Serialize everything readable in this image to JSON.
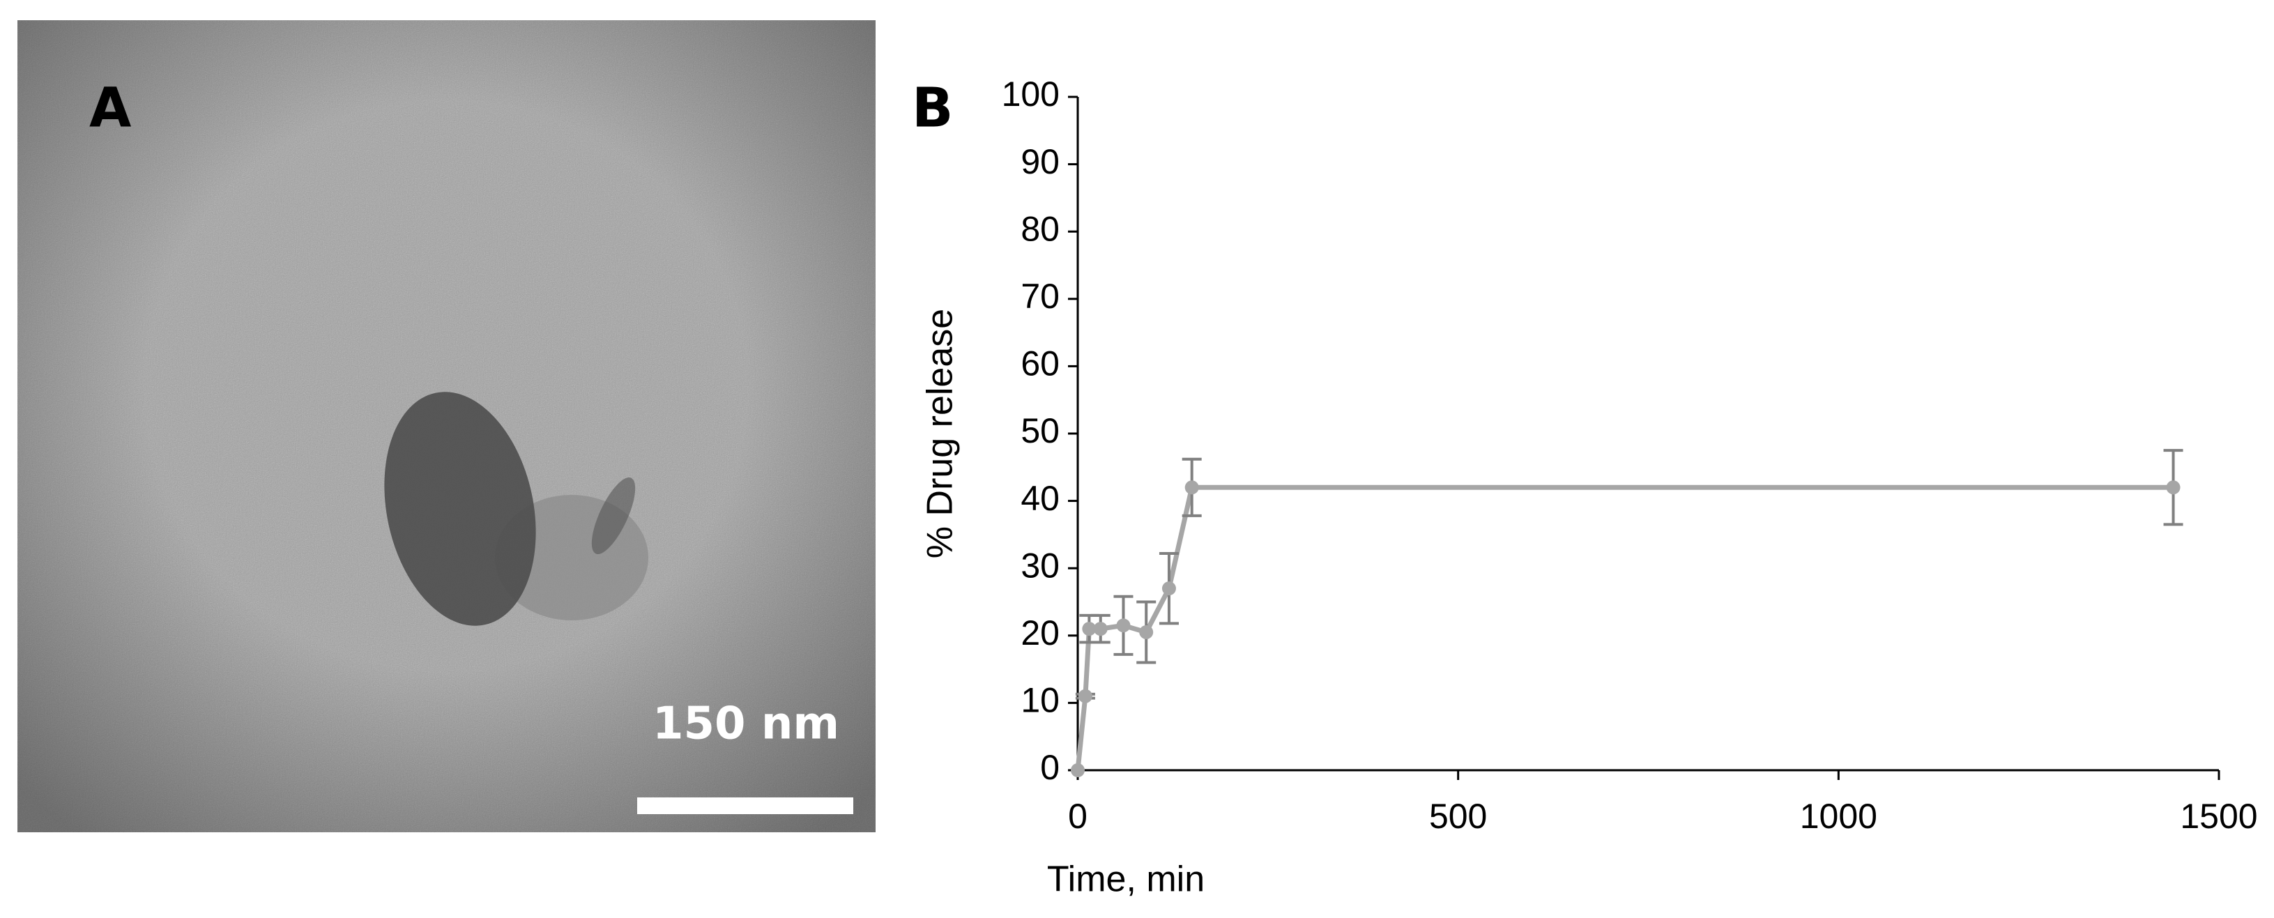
{
  "image_panel": {
    "label": "A",
    "scale_bar": "150 nm"
  },
  "chart_data": {
    "type": "line",
    "panel_label": "B",
    "x": [
      0,
      10,
      15,
      30,
      60,
      90,
      120,
      150,
      1440
    ],
    "series": [
      {
        "name": "Drug release",
        "color": "#a6a6a6",
        "values": [
          0,
          11,
          21,
          21,
          21.5,
          20.5,
          27,
          42,
          42
        ],
        "errors": [
          0,
          0.3,
          2,
          2,
          4.3,
          4.5,
          5.2,
          4.2,
          5.5
        ]
      }
    ],
    "xlabel": "Time, min",
    "ylabel": "% Drug release",
    "xlim": [
      0,
      1500
    ],
    "xticks": [
      0,
      500,
      1000,
      1500
    ],
    "ylim": [
      0,
      100
    ],
    "yticks": [
      0,
      10,
      20,
      30,
      40,
      50,
      60,
      70,
      80,
      90,
      100
    ],
    "grid": false
  }
}
